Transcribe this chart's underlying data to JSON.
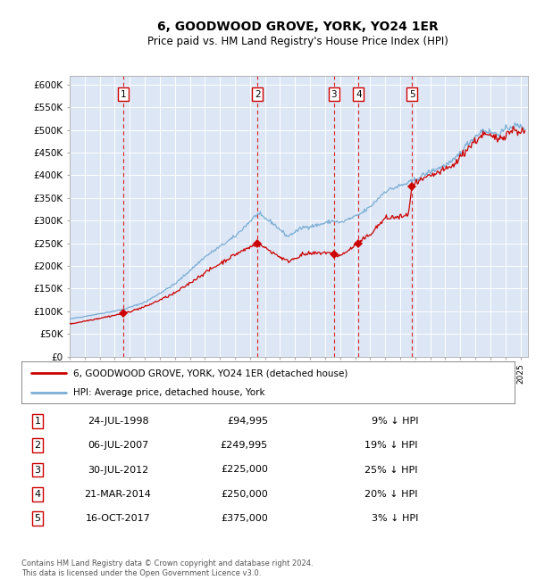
{
  "title": "6, GOODWOOD GROVE, YORK, YO24 1ER",
  "subtitle": "Price paid vs. HM Land Registry's House Price Index (HPI)",
  "ylim": [
    0,
    620000
  ],
  "yticks": [
    0,
    50000,
    100000,
    150000,
    200000,
    250000,
    300000,
    350000,
    400000,
    450000,
    500000,
    550000,
    600000
  ],
  "ytick_labels": [
    "£0",
    "£50K",
    "£100K",
    "£150K",
    "£200K",
    "£250K",
    "£300K",
    "£350K",
    "£400K",
    "£450K",
    "£500K",
    "£550K",
    "£600K"
  ],
  "background_color": "#dce6f5",
  "grid_color": "#ffffff",
  "line_color_red": "#cc0000",
  "line_color_blue": "#7aadd4",
  "sale_dates_num": [
    1998.56,
    2007.51,
    2012.58,
    2014.22,
    2017.79
  ],
  "sale_prices": [
    94995,
    249995,
    225000,
    250000,
    375000
  ],
  "sale_labels": [
    "1",
    "2",
    "3",
    "4",
    "5"
  ],
  "legend_red": "6, GOODWOOD GROVE, YORK, YO24 1ER (detached house)",
  "legend_blue": "HPI: Average price, detached house, York",
  "table_rows": [
    [
      "1",
      "24-JUL-1998",
      "£94,995",
      "9% ↓ HPI"
    ],
    [
      "2",
      "06-JUL-2007",
      "£249,995",
      "19% ↓ HPI"
    ],
    [
      "3",
      "30-JUL-2012",
      "£225,000",
      "25% ↓ HPI"
    ],
    [
      "4",
      "21-MAR-2014",
      "£250,000",
      "20% ↓ HPI"
    ],
    [
      "5",
      "16-OCT-2017",
      "£375,000",
      "3% ↓ HPI"
    ]
  ],
  "footer": "Contains HM Land Registry data © Crown copyright and database right 2024.\nThis data is licensed under the Open Government Licence v3.0.",
  "xlim_start": 1995.0,
  "xlim_end": 2025.5,
  "hpi_key_points": [
    [
      1995.0,
      83000
    ],
    [
      1998.56,
      104000
    ],
    [
      2000.0,
      120000
    ],
    [
      2002.0,
      160000
    ],
    [
      2004.0,
      220000
    ],
    [
      2006.0,
      265000
    ],
    [
      2007.5,
      315000
    ],
    [
      2008.5,
      295000
    ],
    [
      2009.5,
      265000
    ],
    [
      2010.5,
      285000
    ],
    [
      2011.5,
      290000
    ],
    [
      2012.58,
      300000
    ],
    [
      2013.0,
      295000
    ],
    [
      2014.22,
      312000
    ],
    [
      2015.0,
      330000
    ],
    [
      2016.0,
      365000
    ],
    [
      2017.79,
      386000
    ],
    [
      2018.5,
      400000
    ],
    [
      2019.5,
      415000
    ],
    [
      2020.5,
      430000
    ],
    [
      2021.5,
      470000
    ],
    [
      2022.5,
      500000
    ],
    [
      2023.5,
      490000
    ],
    [
      2024.5,
      510000
    ],
    [
      2025.3,
      505000
    ]
  ],
  "pp_key_points": [
    [
      1995.0,
      72000
    ],
    [
      1998.56,
      94995
    ],
    [
      2000.0,
      110000
    ],
    [
      2002.0,
      140000
    ],
    [
      2004.0,
      185000
    ],
    [
      2006.0,
      225000
    ],
    [
      2007.51,
      249995
    ],
    [
      2008.5,
      230000
    ],
    [
      2009.5,
      210000
    ],
    [
      2010.5,
      225000
    ],
    [
      2011.5,
      228000
    ],
    [
      2012.0,
      230000
    ],
    [
      2012.58,
      225000
    ],
    [
      2013.0,
      222000
    ],
    [
      2014.22,
      250000
    ],
    [
      2015.0,
      270000
    ],
    [
      2016.0,
      305000
    ],
    [
      2017.5,
      310000
    ],
    [
      2017.79,
      375000
    ],
    [
      2018.0,
      380000
    ],
    [
      2018.5,
      390000
    ],
    [
      2019.5,
      405000
    ],
    [
      2020.5,
      420000
    ],
    [
      2021.5,
      460000
    ],
    [
      2022.5,
      490000
    ],
    [
      2023.5,
      480000
    ],
    [
      2024.5,
      500000
    ],
    [
      2025.3,
      495000
    ]
  ]
}
